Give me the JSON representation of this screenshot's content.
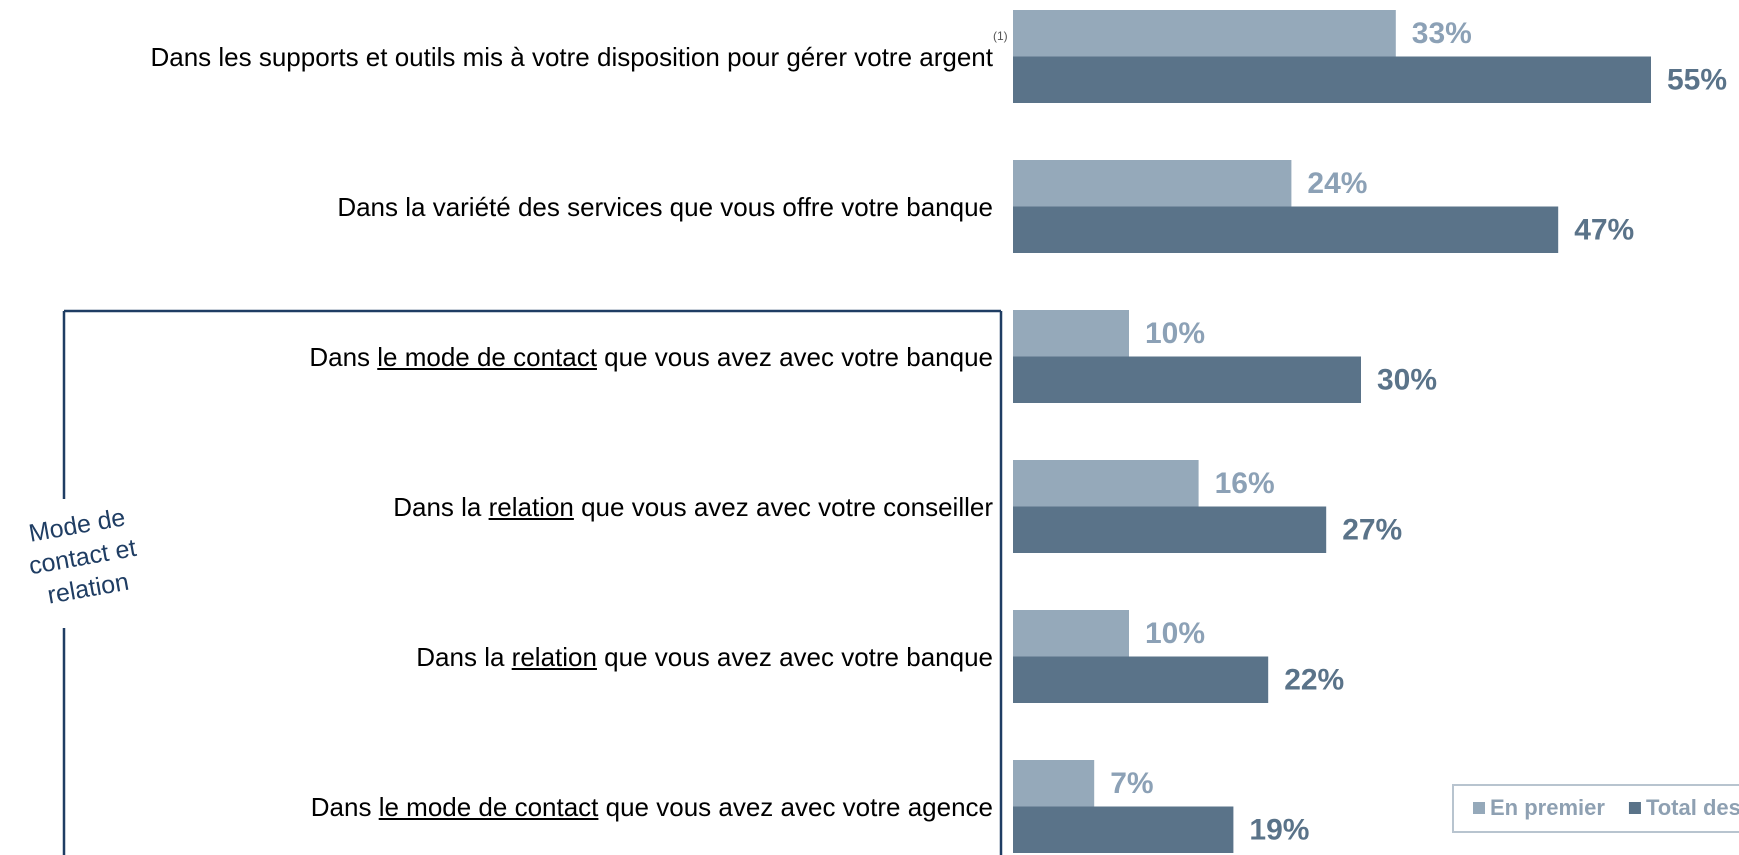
{
  "chart_data": {
    "type": "hbar",
    "categories": [
      [
        "Dans les supports et outils mis à votre disposition pour gérer votre argent"
      ],
      [
        "Dans la variété des services que vous offre votre banque"
      ],
      [
        "Dans ",
        "le mode de contact",
        " que vous avez avec votre banque"
      ],
      [
        "Dans la ",
        "relation",
        " que vous avez avec votre conseiller"
      ],
      [
        "Dans la ",
        "relation",
        " que vous avez avec votre banque"
      ],
      [
        "Dans ",
        "le mode de contact",
        " que vous avez avec votre agence"
      ]
    ],
    "footnote": "(1)",
    "group_label": "Mode de contact et relation",
    "series": [
      {
        "name": "En premier",
        "color": "#95a9ba",
        "label_color": "#8ca1b6",
        "values": [
          33,
          24,
          10,
          16,
          10,
          7
        ],
        "value_labels": [
          "33%",
          "24%",
          "10%",
          "16%",
          "10%",
          "7%"
        ]
      },
      {
        "name": "Total des citations",
        "color": "#5a7389",
        "label_color": "#5a7389",
        "values": [
          55,
          47,
          30,
          27,
          22,
          19
        ],
        "value_labels": [
          "55%",
          "47%",
          "30%",
          "27%",
          "22%",
          "19%"
        ]
      }
    ],
    "xlim": [
      0,
      55
    ]
  }
}
